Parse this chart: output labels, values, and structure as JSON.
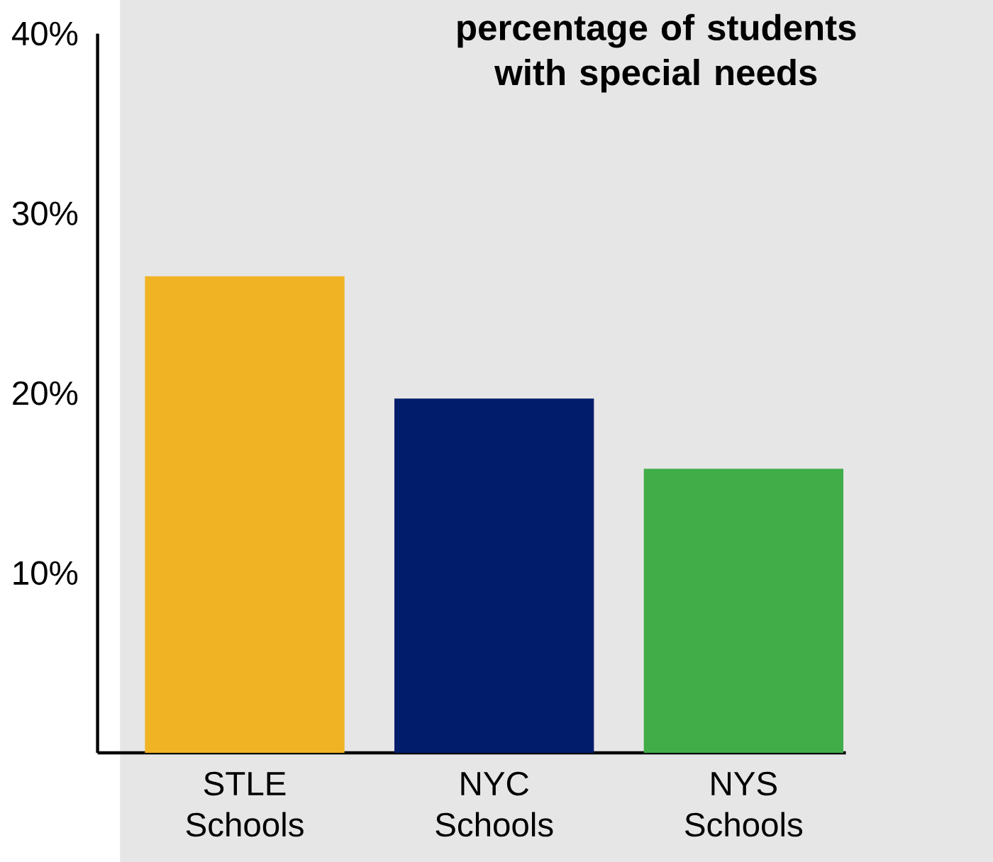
{
  "chart_data": {
    "type": "bar",
    "title": "percentage of students with special needs",
    "categories": [
      "STLE Schools",
      "NYC Schools",
      "NYS Schools"
    ],
    "values": [
      26.5,
      19.7,
      15.8
    ],
    "colors": [
      "#f0b323",
      "#001c6b",
      "#41ad49"
    ],
    "ylim": [
      0,
      40
    ],
    "yticks": [
      {
        "value": 10,
        "label": "10%"
      },
      {
        "value": 20,
        "label": "20%"
      },
      {
        "value": 30,
        "label": "30%"
      },
      {
        "value": 40,
        "label": "40%"
      }
    ]
  }
}
